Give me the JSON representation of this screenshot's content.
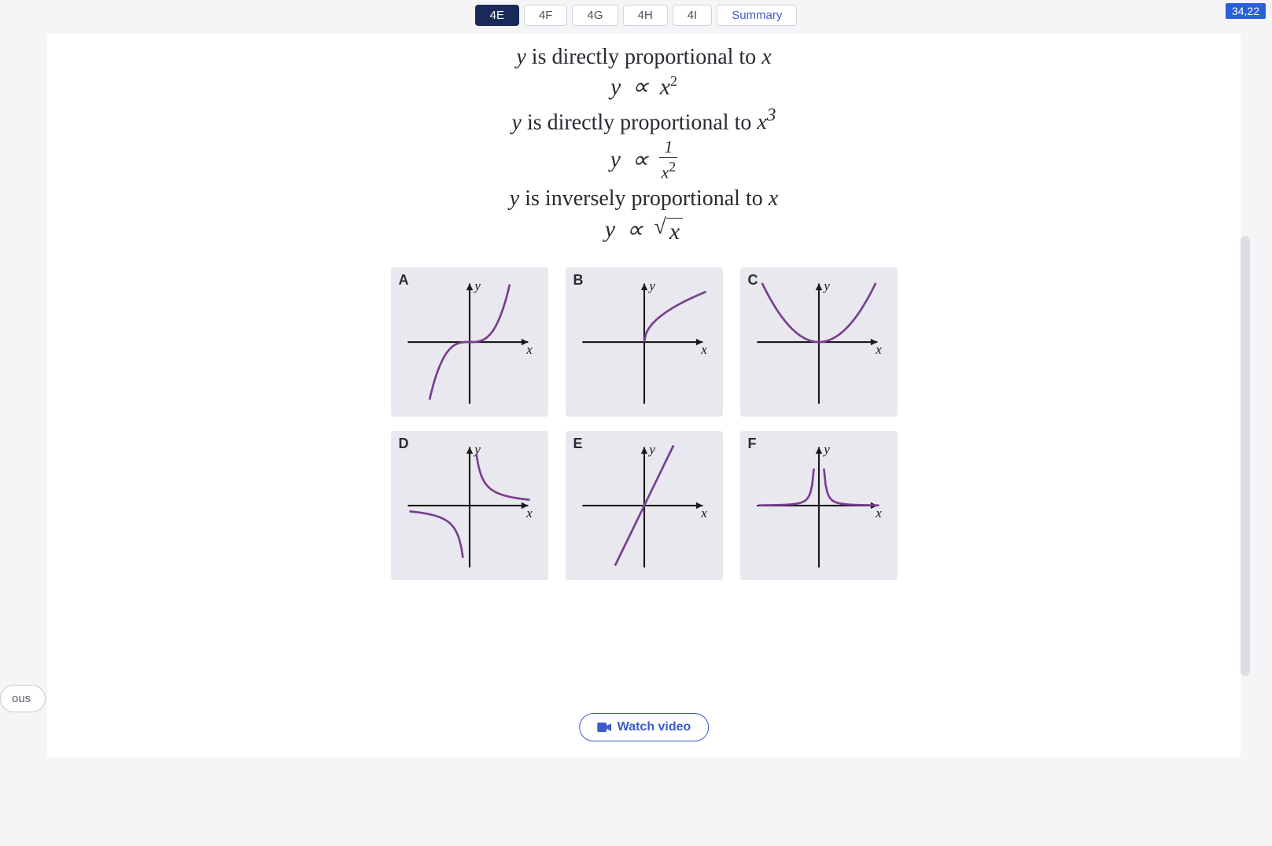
{
  "tabs": {
    "items": [
      "4E",
      "4F",
      "4G",
      "4H",
      "4I",
      "Summary"
    ],
    "active_index": 0,
    "summary_index": 5
  },
  "corner_time": "34,22",
  "proportional_lines": {
    "line1_pre": "y",
    "line1_mid": " is directly proportional to ",
    "line1_post": "x",
    "formula1_lhs": "y",
    "formula1_op": "∝",
    "formula1_rhs_base": "x",
    "formula1_rhs_exp": "2",
    "line2_pre": "y",
    "line2_mid": " is directly proportional to ",
    "line2_post_base": "x",
    "line2_post_exp": "3",
    "formula2_lhs": "y",
    "formula2_op": "∝",
    "formula2_frac_num": "1",
    "formula2_frac_den_base": "x",
    "formula2_frac_den_exp": "2",
    "line3_pre": "y",
    "line3_mid": " is inversely proportional to ",
    "line3_post": "x",
    "formula3_lhs": "y",
    "formula3_op": "∝",
    "formula3_sqrt_arg": "x"
  },
  "graphs": {
    "axis_y_label": "y",
    "axis_x_label": "x",
    "curve_color": "#7a3d8f",
    "bg_color": "#e8e8ee",
    "items": [
      {
        "label": "A",
        "type": "cubic"
      },
      {
        "label": "B",
        "type": "sqrt"
      },
      {
        "label": "C",
        "type": "parabola"
      },
      {
        "label": "D",
        "type": "reciprocal"
      },
      {
        "label": "E",
        "type": "linear"
      },
      {
        "label": "F",
        "type": "inverse_square"
      }
    ]
  },
  "buttons": {
    "watch_video": "Watch video",
    "previous": "ous"
  },
  "colors": {
    "accent": "#3d5bcc",
    "tab_active_bg": "#1a2a5a",
    "text": "#2a2a32"
  }
}
